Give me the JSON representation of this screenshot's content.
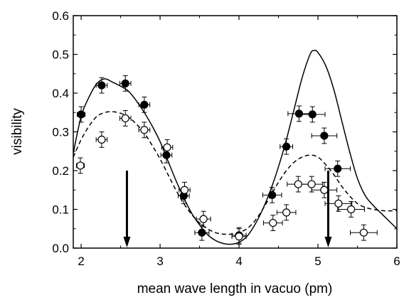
{
  "chart_data": {
    "type": "scatter",
    "title": "",
    "xlabel": "mean wave length in vacuo (pm)",
    "ylabel": "visibility",
    "xlim": [
      1.9,
      6.0
    ],
    "ylim": [
      0.0,
      0.6
    ],
    "grid": false,
    "x_ticks": [
      2,
      3,
      4,
      5,
      6
    ],
    "x_tick_labels": [
      "2",
      "3",
      "4",
      "5",
      "6"
    ],
    "y_ticks": [
      0.0,
      0.1,
      0.2,
      0.3,
      0.4,
      0.5,
      0.6
    ],
    "y_tick_labels": [
      "0.0",
      "0.1",
      "0.2",
      "0.3",
      "0.4",
      "0.5",
      "0.6"
    ],
    "series": [
      {
        "marker": "filled-circle",
        "points": [
          {
            "x": 2.0,
            "y": 0.345,
            "xerr": 0.05,
            "yerr": 0.02
          },
          {
            "x": 2.26,
            "y": 0.42,
            "xerr": 0.07,
            "yerr": 0.02
          },
          {
            "x": 2.56,
            "y": 0.425,
            "xerr": 0.07,
            "yerr": 0.02
          },
          {
            "x": 2.8,
            "y": 0.37,
            "xerr": 0.07,
            "yerr": 0.02
          },
          {
            "x": 3.08,
            "y": 0.24,
            "xerr": 0.07,
            "yerr": 0.02
          },
          {
            "x": 3.3,
            "y": 0.135,
            "xerr": 0.07,
            "yerr": 0.02
          },
          {
            "x": 3.53,
            "y": 0.04,
            "xerr": 0.09,
            "yerr": 0.02
          },
          {
            "x": 4.0,
            "y": 0.033,
            "xerr": 0.09,
            "yerr": 0.02
          },
          {
            "x": 4.42,
            "y": 0.137,
            "xerr": 0.12,
            "yerr": 0.02
          },
          {
            "x": 4.6,
            "y": 0.262,
            "xerr": 0.08,
            "yerr": 0.02
          },
          {
            "x": 4.76,
            "y": 0.347,
            "xerr": 0.14,
            "yerr": 0.02
          },
          {
            "x": 4.93,
            "y": 0.345,
            "xerr": 0.16,
            "yerr": 0.02
          },
          {
            "x": 5.08,
            "y": 0.29,
            "xerr": 0.16,
            "yerr": 0.02
          },
          {
            "x": 5.25,
            "y": 0.205,
            "xerr": 0.16,
            "yerr": 0.02
          }
        ]
      },
      {
        "marker": "open-circle",
        "points": [
          {
            "x": 1.99,
            "y": 0.213,
            "xerr": 0.05,
            "yerr": 0.02
          },
          {
            "x": 2.26,
            "y": 0.28,
            "xerr": 0.07,
            "yerr": 0.02
          },
          {
            "x": 2.56,
            "y": 0.335,
            "xerr": 0.07,
            "yerr": 0.02
          },
          {
            "x": 2.8,
            "y": 0.305,
            "xerr": 0.07,
            "yerr": 0.02
          },
          {
            "x": 3.09,
            "y": 0.26,
            "xerr": 0.07,
            "yerr": 0.02
          },
          {
            "x": 3.31,
            "y": 0.15,
            "xerr": 0.07,
            "yerr": 0.02
          },
          {
            "x": 3.55,
            "y": 0.075,
            "xerr": 0.09,
            "yerr": 0.02
          },
          {
            "x": 4.0,
            "y": 0.03,
            "xerr": 0.09,
            "yerr": 0.02
          },
          {
            "x": 4.43,
            "y": 0.065,
            "xerr": 0.12,
            "yerr": 0.02
          },
          {
            "x": 4.6,
            "y": 0.092,
            "xerr": 0.12,
            "yerr": 0.02
          },
          {
            "x": 4.75,
            "y": 0.165,
            "xerr": 0.14,
            "yerr": 0.02
          },
          {
            "x": 4.92,
            "y": 0.165,
            "xerr": 0.14,
            "yerr": 0.02
          },
          {
            "x": 5.08,
            "y": 0.15,
            "xerr": 0.16,
            "yerr": 0.02
          },
          {
            "x": 5.26,
            "y": 0.115,
            "xerr": 0.17,
            "yerr": 0.02
          },
          {
            "x": 5.42,
            "y": 0.1,
            "xerr": 0.17,
            "yerr": 0.02
          },
          {
            "x": 5.58,
            "y": 0.04,
            "xerr": 0.17,
            "yerr": 0.02
          }
        ]
      }
    ],
    "curves": [
      {
        "style": "solid",
        "points": [
          [
            1.9,
            0.245
          ],
          [
            2.0,
            0.34
          ],
          [
            2.1,
            0.39
          ],
          [
            2.2,
            0.425
          ],
          [
            2.3,
            0.437
          ],
          [
            2.4,
            0.428
          ],
          [
            2.5,
            0.418
          ],
          [
            2.6,
            0.405
          ],
          [
            2.7,
            0.38
          ],
          [
            2.8,
            0.35
          ],
          [
            2.9,
            0.315
          ],
          [
            3.0,
            0.275
          ],
          [
            3.1,
            0.225
          ],
          [
            3.2,
            0.175
          ],
          [
            3.3,
            0.13
          ],
          [
            3.4,
            0.09
          ],
          [
            3.5,
            0.06
          ],
          [
            3.6,
            0.035
          ],
          [
            3.7,
            0.02
          ],
          [
            3.8,
            0.012
          ],
          [
            3.9,
            0.01
          ],
          [
            4.0,
            0.015
          ],
          [
            4.1,
            0.03
          ],
          [
            4.2,
            0.06
          ],
          [
            4.3,
            0.1
          ],
          [
            4.4,
            0.15
          ],
          [
            4.5,
            0.21
          ],
          [
            4.6,
            0.28
          ],
          [
            4.7,
            0.36
          ],
          [
            4.8,
            0.44
          ],
          [
            4.9,
            0.5
          ],
          [
            4.95,
            0.51
          ],
          [
            5.0,
            0.505
          ],
          [
            5.1,
            0.47
          ],
          [
            5.2,
            0.41
          ],
          [
            5.3,
            0.33
          ],
          [
            5.4,
            0.25
          ],
          [
            5.5,
            0.18
          ],
          [
            5.6,
            0.135
          ],
          [
            5.7,
            0.11
          ],
          [
            5.8,
            0.09
          ],
          [
            5.9,
            0.07
          ],
          [
            6.0,
            0.05
          ]
        ]
      },
      {
        "style": "dashed",
        "points": [
          [
            1.9,
            0.235
          ],
          [
            2.0,
            0.28
          ],
          [
            2.1,
            0.315
          ],
          [
            2.2,
            0.34
          ],
          [
            2.3,
            0.35
          ],
          [
            2.4,
            0.352
          ],
          [
            2.5,
            0.348
          ],
          [
            2.6,
            0.338
          ],
          [
            2.7,
            0.32
          ],
          [
            2.8,
            0.297
          ],
          [
            2.9,
            0.265
          ],
          [
            3.0,
            0.23
          ],
          [
            3.1,
            0.19
          ],
          [
            3.2,
            0.15
          ],
          [
            3.3,
            0.115
          ],
          [
            3.4,
            0.087
          ],
          [
            3.5,
            0.065
          ],
          [
            3.6,
            0.05
          ],
          [
            3.7,
            0.04
          ],
          [
            3.8,
            0.036
          ],
          [
            3.9,
            0.036
          ],
          [
            4.0,
            0.04
          ],
          [
            4.1,
            0.05
          ],
          [
            4.2,
            0.07
          ],
          [
            4.3,
            0.1
          ],
          [
            4.4,
            0.135
          ],
          [
            4.5,
            0.17
          ],
          [
            4.6,
            0.2
          ],
          [
            4.7,
            0.222
          ],
          [
            4.8,
            0.235
          ],
          [
            4.9,
            0.24
          ],
          [
            5.0,
            0.235
          ],
          [
            5.1,
            0.215
          ],
          [
            5.2,
            0.19
          ],
          [
            5.3,
            0.16
          ],
          [
            5.4,
            0.135
          ],
          [
            5.5,
            0.115
          ],
          [
            5.6,
            0.105
          ],
          [
            5.7,
            0.1
          ],
          [
            5.8,
            0.097
          ],
          [
            5.9,
            0.096
          ],
          [
            6.0,
            0.097
          ]
        ]
      }
    ],
    "arrows": [
      {
        "x": 2.58,
        "y_from": 0.2,
        "y_to": 0.0
      },
      {
        "x": 5.13,
        "y_from": 0.2,
        "y_to": 0.0
      }
    ]
  }
}
